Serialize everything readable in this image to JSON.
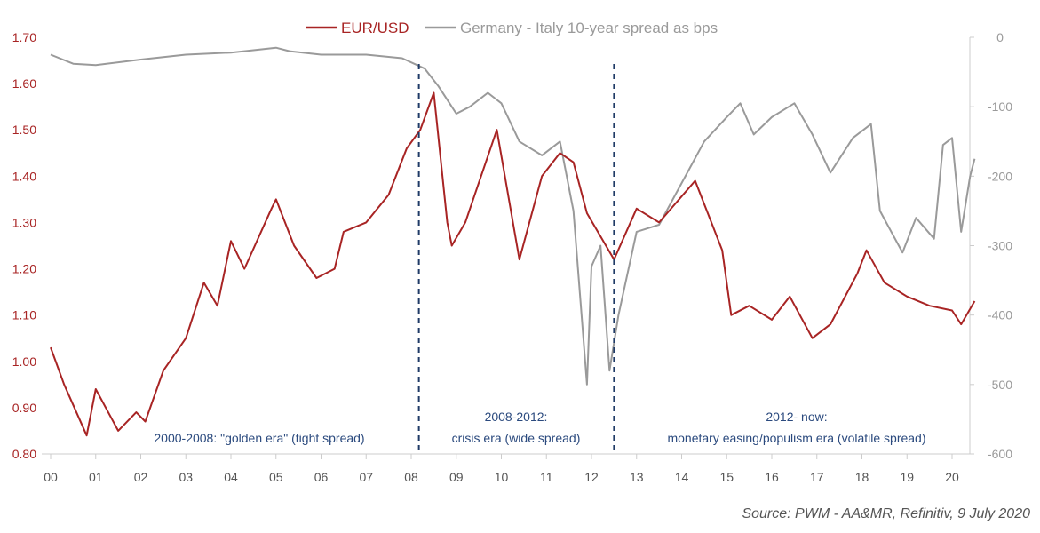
{
  "chart_data": {
    "type": "line",
    "title": "",
    "legend": {
      "placement": "top"
    },
    "grid": false,
    "x_ticks": [
      "00",
      "01",
      "02",
      "03",
      "04",
      "05",
      "06",
      "07",
      "08",
      "09",
      "10",
      "11",
      "12",
      "13",
      "14",
      "15",
      "16",
      "17",
      "18",
      "19",
      "20"
    ],
    "xlim": [
      2000,
      2020.6
    ],
    "y_left": {
      "ticks": [
        "0.80",
        "0.90",
        "1.00",
        "1.10",
        "1.20",
        "1.30",
        "1.40",
        "1.50",
        "1.60",
        "1.70"
      ],
      "range": [
        0.8,
        1.7
      ],
      "color": "#a82424"
    },
    "y_right": {
      "ticks": [
        "0",
        "-100",
        "-200",
        "-300",
        "-400",
        "-500",
        "-600"
      ],
      "range": [
        -600,
        0
      ],
      "color": "#9a9a9a"
    },
    "series": [
      {
        "name": "EUR/USD",
        "axis": "left",
        "color": "#a82424",
        "x": [
          2000.0,
          2000.3,
          2000.8,
          2001.0,
          2001.5,
          2001.9,
          2002.1,
          2002.5,
          2003.0,
          2003.4,
          2003.7,
          2004.0,
          2004.3,
          2004.9,
          2005.0,
          2005.4,
          2005.9,
          2006.3,
          2006.5,
          2007.0,
          2007.5,
          2007.9,
          2008.2,
          2008.5,
          2008.8,
          2008.9,
          2009.2,
          2009.9,
          2010.4,
          2010.9,
          2011.3,
          2011.6,
          2011.9,
          2012.5,
          2013.0,
          2013.5,
          2014.3,
          2014.9,
          2015.1,
          2015.5,
          2016.0,
          2016.4,
          2016.9,
          2017.3,
          2017.9,
          2018.1,
          2018.5,
          2019.0,
          2019.5,
          2020.0,
          2020.2,
          2020.5
        ],
        "values": [
          1.03,
          0.95,
          0.84,
          0.94,
          0.85,
          0.89,
          0.87,
          0.98,
          1.05,
          1.17,
          1.12,
          1.26,
          1.2,
          1.33,
          1.35,
          1.25,
          1.18,
          1.2,
          1.28,
          1.3,
          1.36,
          1.46,
          1.5,
          1.58,
          1.3,
          1.25,
          1.3,
          1.5,
          1.22,
          1.4,
          1.45,
          1.43,
          1.32,
          1.22,
          1.33,
          1.3,
          1.39,
          1.24,
          1.1,
          1.12,
          1.09,
          1.14,
          1.05,
          1.08,
          1.19,
          1.24,
          1.17,
          1.14,
          1.12,
          1.11,
          1.08,
          1.13
        ]
      },
      {
        "name": "Germany - Italy 10-year spread as bps",
        "axis": "right",
        "color": "#9a9a9a",
        "x": [
          2000.0,
          2000.5,
          2001.0,
          2002.0,
          2003.0,
          2004.0,
          2005.0,
          2005.3,
          2006.0,
          2007.0,
          2007.8,
          2008.3,
          2008.6,
          2009.0,
          2009.3,
          2009.7,
          2010.0,
          2010.4,
          2010.9,
          2011.3,
          2011.6,
          2011.9,
          2012.0,
          2012.2,
          2012.4,
          2012.6,
          2013.0,
          2013.5,
          2014.0,
          2014.5,
          2015.0,
          2015.3,
          2015.6,
          2016.0,
          2016.5,
          2016.9,
          2017.3,
          2017.8,
          2018.2,
          2018.4,
          2018.9,
          2019.2,
          2019.6,
          2019.8,
          2020.0,
          2020.2,
          2020.4,
          2020.5
        ],
        "values": [
          -25,
          -38,
          -40,
          -32,
          -25,
          -22,
          -15,
          -20,
          -25,
          -25,
          -30,
          -45,
          -70,
          -110,
          -100,
          -80,
          -95,
          -150,
          -170,
          -150,
          -250,
          -500,
          -330,
          -300,
          -480,
          -400,
          -280,
          -270,
          -210,
          -150,
          -115,
          -95,
          -140,
          -115,
          -95,
          -140,
          -195,
          -145,
          -125,
          -250,
          -310,
          -260,
          -290,
          -155,
          -145,
          -280,
          -200,
          -175
        ]
      }
    ],
    "vertical_markers": [
      2008.17,
      2012.5
    ],
    "annotations": [
      {
        "lines": [
          "2000-2008: \"golden era\" (tight spread)"
        ]
      },
      {
        "lines": [
          "2008-2012:",
          "crisis era (wide spread)"
        ]
      },
      {
        "lines": [
          "2012- now:",
          "monetary easing/populism era (volatile spread)"
        ]
      }
    ],
    "source": "Source: PWM - AA&MR, Refinitiv, 9 July 2020"
  }
}
